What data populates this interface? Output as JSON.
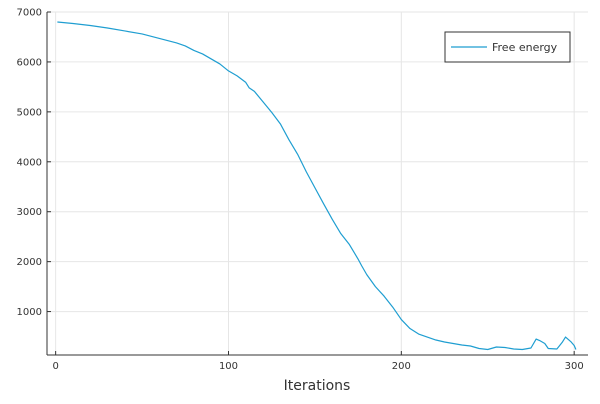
{
  "chart_data": {
    "type": "line",
    "xlabel": "Iterations",
    "ylabel": "",
    "xlim": [
      -5,
      308
    ],
    "ylim": [
      130,
      7000
    ],
    "x_ticks": [
      0,
      100,
      200,
      300
    ],
    "x_tick_labels": [
      "0",
      "100",
      "200",
      "300"
    ],
    "y_ticks": [
      1000,
      2000,
      3000,
      4000,
      5000,
      6000,
      7000
    ],
    "y_tick_labels": [
      "1000",
      "2000",
      "3000",
      "4000",
      "5000",
      "6000",
      "7000"
    ],
    "grid": true,
    "legend": {
      "position": "top-right",
      "entries": [
        "Free energy"
      ]
    },
    "series": [
      {
        "name": "Free energy",
        "color": "#1f9ed1",
        "x": [
          1,
          10,
          20,
          30,
          40,
          50,
          60,
          70,
          75,
          80,
          85,
          90,
          95,
          100,
          105,
          110,
          112,
          115,
          120,
          125,
          130,
          135,
          140,
          145,
          150,
          155,
          160,
          165,
          170,
          175,
          177,
          180,
          185,
          190,
          195,
          200,
          205,
          210,
          215,
          220,
          225,
          230,
          235,
          240,
          245,
          250,
          255,
          260,
          265,
          270,
          275,
          278,
          280,
          283,
          285,
          290,
          293,
          295,
          298,
          300,
          301
        ],
        "y": [
          6800,
          6770,
          6730,
          6680,
          6620,
          6560,
          6470,
          6380,
          6320,
          6230,
          6160,
          6060,
          5960,
          5820,
          5720,
          5590,
          5480,
          5410,
          5200,
          4990,
          4760,
          4440,
          4150,
          3800,
          3480,
          3160,
          2850,
          2560,
          2340,
          2050,
          1920,
          1740,
          1500,
          1310,
          1090,
          840,
          660,
          550,
          490,
          430,
          390,
          360,
          330,
          310,
          260,
          240,
          290,
          280,
          250,
          240,
          270,
          450,
          420,
          360,
          260,
          250,
          380,
          490,
          400,
          320,
          240
        ]
      }
    ]
  }
}
